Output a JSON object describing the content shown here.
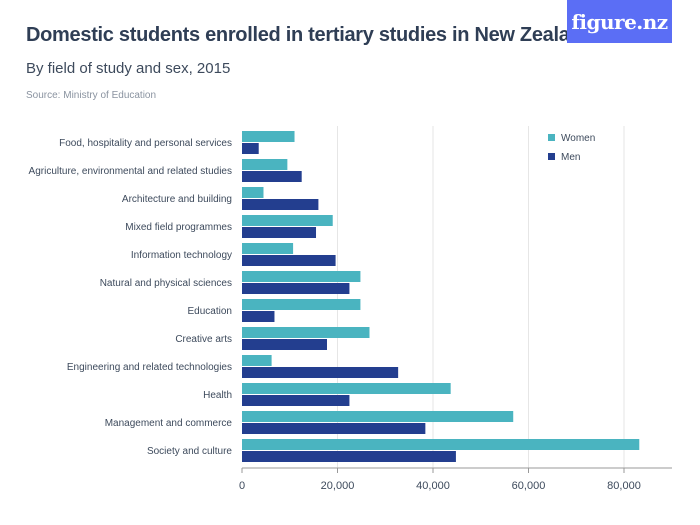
{
  "title": "Domestic students enrolled in tertiary studies in New Zealand",
  "subtitle": "By field of study and sex, 2015",
  "source": "Source: Ministry of Education",
  "logo": "figure.nz",
  "colors": {
    "women": "#4ab4c0",
    "men": "#233e8f",
    "grid": "#e6e6e6",
    "axis": "#999999",
    "logo_bg": "#5b6ef5"
  },
  "chart_data": {
    "type": "bar",
    "orientation": "horizontal",
    "categories": [
      "Food, hospitality and personal services",
      "Agriculture, environmental and related studies",
      "Architecture and building",
      "Mixed field programmes",
      "Information technology",
      "Natural and physical sciences",
      "Education",
      "Creative arts",
      "Engineering and related technologies",
      "Health",
      "Management and commerce",
      "Society and culture"
    ],
    "series": [
      {
        "name": "Women",
        "values": [
          11000,
          9500,
          4500,
          19000,
          10700,
          24800,
          24800,
          26700,
          6200,
          43700,
          56800,
          83200
        ]
      },
      {
        "name": "Men",
        "values": [
          3500,
          12500,
          16000,
          15500,
          19600,
          22500,
          6800,
          17800,
          32700,
          22500,
          38400,
          44800
        ]
      }
    ],
    "xlim": [
      0,
      90000
    ],
    "xticks": [
      0,
      20000,
      40000,
      60000,
      80000
    ],
    "xtick_labels": [
      "0",
      "20,000",
      "40,000",
      "60,000",
      "80,000"
    ],
    "grid": true,
    "legend_position": "top-right"
  }
}
